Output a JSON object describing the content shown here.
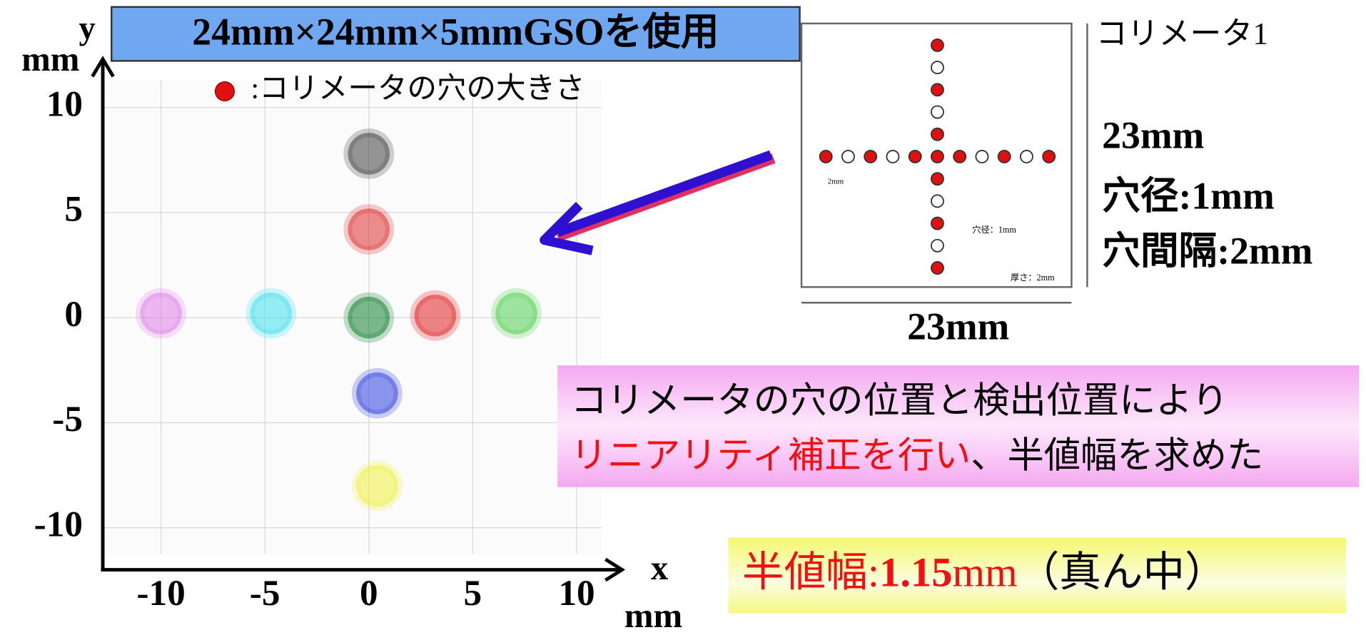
{
  "header": {
    "title": "24mm×24mm×5mmGSOを使用",
    "legend": ":コリメータの穴の大きさ"
  },
  "chart_data": {
    "type": "scatter",
    "x_label": "x",
    "x_unit": "mm",
    "y_label": "y",
    "y_unit": "mm",
    "xlim": [
      -12.8,
      12.1
    ],
    "ylim": [
      -12,
      12.3
    ],
    "xticks": [
      -10,
      -5,
      0,
      5,
      10
    ],
    "yticks": [
      10,
      5,
      0,
      -5,
      -10
    ],
    "grid": true,
    "series": [
      {
        "color": "#e080e8",
        "x": [
          -10
        ],
        "values": [
          0.2
        ]
      },
      {
        "color": "#40e0f0",
        "x": [
          -4.7
        ],
        "values": [
          0.2
        ]
      },
      {
        "color": "#108030",
        "x": [
          0
        ],
        "values": [
          0
        ]
      },
      {
        "color": "#e02020",
        "x": [
          3.2
        ],
        "values": [
          0.1
        ]
      },
      {
        "color": "#50d050",
        "x": [
          7.1
        ],
        "values": [
          0.2
        ]
      },
      {
        "color": "#404040",
        "x": [
          0
        ],
        "values": [
          7.8
        ]
      },
      {
        "color": "#e03030",
        "x": [
          0
        ],
        "values": [
          4.2
        ]
      },
      {
        "color": "#3040e0",
        "x": [
          0.4
        ],
        "values": [
          -3.6
        ]
      },
      {
        "color": "#f0f040",
        "x": [
          0.4
        ],
        "values": [
          -8
        ]
      }
    ]
  },
  "collimator": {
    "name": "コリメータ1",
    "height": "23mm",
    "hole_diameter": "穴径:1mm",
    "hole_pitch": "穴間隔:2mm",
    "width": "23mm",
    "small_diameter": "穴径：1mm",
    "small_thickness": "厚さ：2mm",
    "small_pitch": "2mm"
  },
  "note": {
    "line1": "コリメータの穴の位置と検出位置により",
    "line2_red": "リニアリティ補正を行い",
    "line2_black": "、半値幅を求めた"
  },
  "result": {
    "label": "半値幅:",
    "value": "1.15",
    "unit": "mm",
    "suffix": "（真ん中）"
  }
}
